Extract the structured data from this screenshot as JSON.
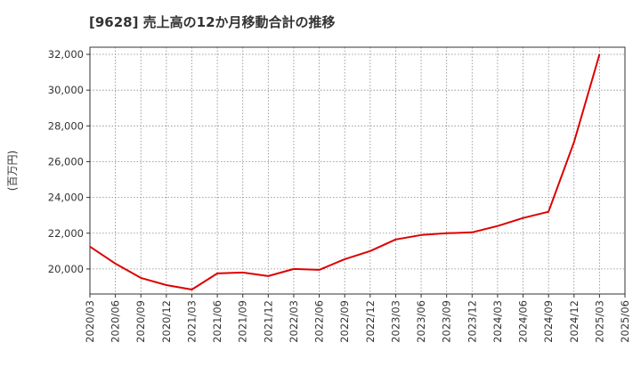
{
  "chart_data": {
    "type": "line",
    "title": "[9628]  売上高の12か月移動合計の推移",
    "xlabel": "",
    "ylabel": "(百万円)",
    "ylim": [
      18600,
      32400
    ],
    "xlim": [
      "2020/03",
      "2025/06"
    ],
    "yticks": [
      20000,
      22000,
      24000,
      26000,
      28000,
      30000,
      32000
    ],
    "ytick_labels": [
      "20,000",
      "22,000",
      "24,000",
      "26,000",
      "28,000",
      "30,000",
      "32,000"
    ],
    "xtick_labels": [
      "2020/03",
      "2020/06",
      "2020/09",
      "2020/12",
      "2021/03",
      "2021/06",
      "2021/09",
      "2021/12",
      "2022/03",
      "2022/06",
      "2022/09",
      "2022/12",
      "2023/03",
      "2023/06",
      "2023/09",
      "2023/12",
      "2024/03",
      "2024/06",
      "2024/09",
      "2024/12",
      "2025/03",
      "2025/06"
    ],
    "grid": true,
    "series": [
      {
        "name": "売上高12か月移動合計",
        "color": "#dd0000",
        "x": [
          "2020/03",
          "2020/06",
          "2020/09",
          "2020/12",
          "2021/03",
          "2021/06",
          "2021/09",
          "2021/12",
          "2022/03",
          "2022/06",
          "2022/09",
          "2022/12",
          "2023/03",
          "2023/06",
          "2023/09",
          "2023/12",
          "2024/03",
          "2024/06",
          "2024/09",
          "2024/12",
          "2025/03"
        ],
        "values": [
          21250,
          20300,
          19500,
          19100,
          18850,
          19750,
          19800,
          19600,
          20000,
          19950,
          20550,
          21000,
          21650,
          21900,
          22000,
          22050,
          22400,
          22850,
          23200,
          27100,
          32000
        ]
      }
    ]
  }
}
